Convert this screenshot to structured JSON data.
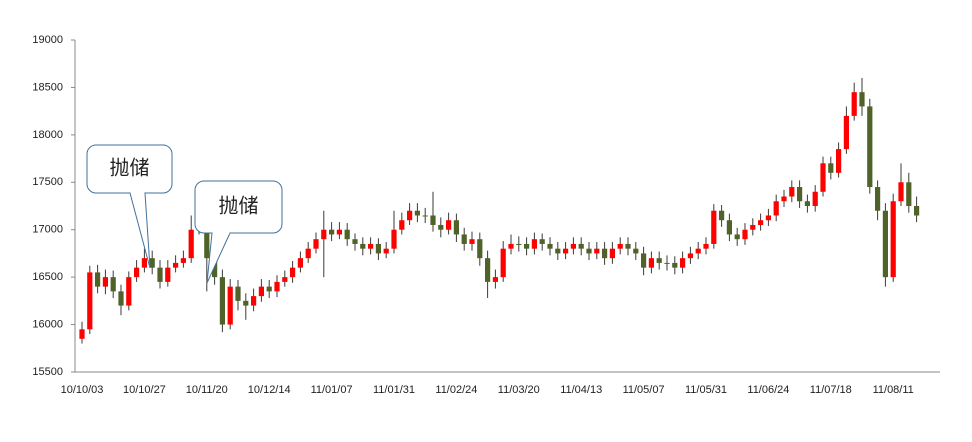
{
  "chart_data": {
    "type": "candlestick",
    "categories": [
      "10/10/03",
      null,
      null,
      null,
      null,
      null,
      null,
      null,
      "10/10/27",
      null,
      null,
      null,
      null,
      null,
      null,
      null,
      "10/11/20",
      null,
      null,
      null,
      null,
      null,
      null,
      null,
      "10/12/14",
      null,
      null,
      null,
      null,
      null,
      null,
      null,
      "11/01/07",
      null,
      null,
      null,
      null,
      null,
      null,
      null,
      "11/01/31",
      null,
      null,
      null,
      null,
      null,
      null,
      null,
      "11/02/24",
      null,
      null,
      null,
      null,
      null,
      null,
      null,
      "11/03/20",
      null,
      null,
      null,
      null,
      null,
      null,
      null,
      "11/04/13",
      null,
      null,
      null,
      null,
      null,
      null,
      null,
      "11/05/07",
      null,
      null,
      null,
      null,
      null,
      null,
      null,
      "11/05/31",
      null,
      null,
      null,
      null,
      null,
      null,
      null,
      "11/06/24",
      null,
      null,
      null,
      null,
      null,
      null,
      null,
      "11/07/18",
      null,
      null,
      null,
      null,
      null,
      null,
      null,
      "11/08/11",
      null,
      null,
      null
    ],
    "open": [
      15850,
      15950,
      16550,
      16400,
      16500,
      16350,
      16200,
      16500,
      16600,
      16700,
      16600,
      16450,
      16600,
      16650,
      16700,
      17000,
      17100,
      16700,
      16500,
      16000,
      16400,
      16250,
      16200,
      16300,
      16400,
      16350,
      16450,
      16500,
      16600,
      16700,
      16800,
      16900,
      17000,
      16950,
      17000,
      16900,
      16850,
      16800,
      16850,
      16750,
      16800,
      17000,
      17100,
      17200,
      17150,
      17150,
      17050,
      17000,
      17100,
      16950,
      16850,
      16900,
      16700,
      16450,
      16500,
      16800,
      16850,
      16850,
      16800,
      16900,
      16850,
      16800,
      16750,
      16800,
      16850,
      16800,
      16750,
      16800,
      16700,
      16800,
      16850,
      16800,
      16750,
      16600,
      16700,
      16650,
      16650,
      16600,
      16700,
      16750,
      16800,
      16850,
      17200,
      17100,
      16950,
      16900,
      17000,
      17050,
      17100,
      17150,
      17300,
      17350,
      17450,
      17300,
      17250,
      17400,
      17700,
      17600,
      17850,
      18200,
      18450,
      18300,
      17450,
      17200,
      16500,
      17300,
      17500,
      17250
    ],
    "high": [
      16030,
      16620,
      16630,
      16580,
      16570,
      16420,
      16560,
      16680,
      16800,
      16780,
      16680,
      16680,
      16730,
      16780,
      17150,
      17250,
      17200,
      16780,
      16580,
      16480,
      16470,
      16330,
      16380,
      16480,
      16470,
      16520,
      16570,
      16670,
      16770,
      16870,
      16970,
      17200,
      17080,
      17080,
      17070,
      16960,
      16920,
      16920,
      16910,
      16870,
      17200,
      17180,
      17280,
      17280,
      17230,
      17400,
      17130,
      17180,
      17170,
      17020,
      16980,
      16970,
      16780,
      16580,
      16880,
      16950,
      16930,
      16920,
      16970,
      16960,
      16920,
      16870,
      16870,
      16920,
      16920,
      16870,
      16870,
      16870,
      16870,
      16920,
      16920,
      16870,
      16820,
      16770,
      16770,
      16730,
      16720,
      16770,
      16820,
      16870,
      16920,
      17270,
      17260,
      17170,
      17020,
      17070,
      17120,
      17170,
      17220,
      17370,
      17420,
      17520,
      17520,
      17370,
      17470,
      17770,
      17770,
      17920,
      18300,
      18550,
      18600,
      18380,
      17520,
      17280,
      17380,
      17700,
      17600,
      17350
    ],
    "low": [
      15800,
      15900,
      16330,
      16320,
      16280,
      16100,
      16150,
      16450,
      16550,
      16530,
      16380,
      16400,
      16550,
      16600,
      16650,
      16950,
      16350,
      16420,
      15920,
      15950,
      16150,
      16050,
      16140,
      16240,
      16280,
      16290,
      16400,
      16440,
      16550,
      16650,
      16750,
      16500,
      16880,
      16900,
      16830,
      16780,
      16730,
      16740,
      16680,
      16700,
      16750,
      16950,
      17050,
      17080,
      17070,
      16980,
      16920,
      16950,
      16870,
      16780,
      16780,
      16620,
      16280,
      16380,
      16450,
      16740,
      16770,
      16730,
      16740,
      16780,
      16730,
      16680,
      16690,
      16740,
      16730,
      16680,
      16690,
      16630,
      16640,
      16740,
      16730,
      16680,
      16520,
      16540,
      16580,
      16570,
      16530,
      16540,
      16640,
      16690,
      16740,
      16800,
      17030,
      16880,
      16830,
      16840,
      16940,
      16990,
      17040,
      17090,
      17240,
      17290,
      17230,
      17180,
      17190,
      17350,
      17530,
      17550,
      17800,
      18150,
      18200,
      17380,
      17100,
      16400,
      16450,
      17250,
      17180,
      17080
    ],
    "close": [
      15950,
      16550,
      16400,
      16500,
      16350,
      16200,
      16500,
      16600,
      16700,
      16600,
      16450,
      16600,
      16650,
      16700,
      17000,
      17100,
      16700,
      16500,
      16000,
      16400,
      16250,
      16200,
      16300,
      16400,
      16350,
      16450,
      16500,
      16600,
      16700,
      16800,
      16900,
      17000,
      16950,
      17000,
      16900,
      16850,
      16800,
      16850,
      16750,
      16800,
      17000,
      17100,
      17200,
      17150,
      17150,
      17050,
      17000,
      17100,
      16950,
      16850,
      16900,
      16700,
      16450,
      16500,
      16800,
      16850,
      16850,
      16800,
      16900,
      16850,
      16800,
      16750,
      16800,
      16850,
      16800,
      16750,
      16800,
      16700,
      16800,
      16850,
      16800,
      16750,
      16600,
      16700,
      16650,
      16650,
      16600,
      16700,
      16750,
      16800,
      16850,
      17200,
      17100,
      16950,
      16900,
      17000,
      17050,
      17100,
      17150,
      17300,
      17350,
      17450,
      17300,
      17250,
      17400,
      17700,
      17600,
      17850,
      18200,
      18450,
      18300,
      17450,
      17200,
      16500,
      17300,
      17500,
      17250,
      17150
    ],
    "up_color": "#ff0000",
    "down_color": "#4f6228",
    "ylim": [
      15500,
      19000
    ],
    "yticks": [
      15500,
      16000,
      16500,
      17000,
      17500,
      18000,
      18500,
      19000
    ],
    "annotations": [
      {
        "text": "抛储"
      },
      {
        "text": "抛储"
      }
    ]
  }
}
